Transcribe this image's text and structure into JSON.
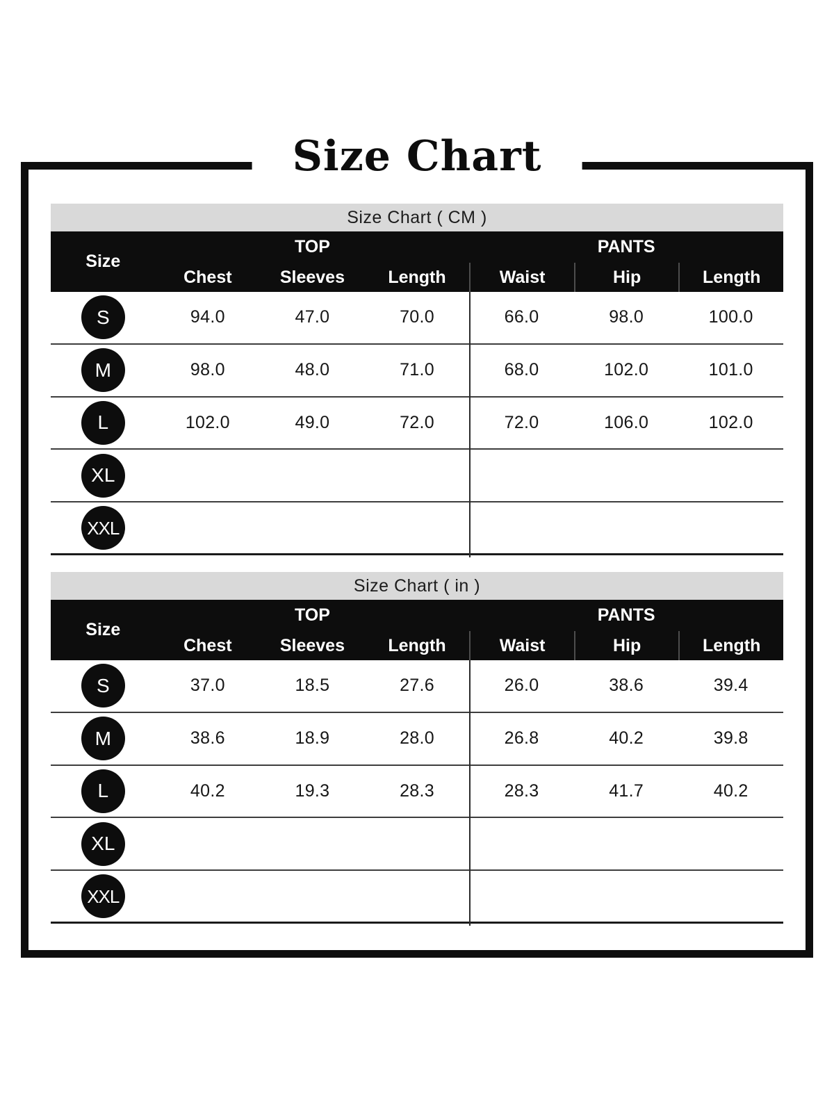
{
  "page": {
    "title": "Size Chart"
  },
  "colors": {
    "frame_border": "#0e0e0e",
    "caption_bar_bg": "#d9d9d9",
    "header_bg": "#0d0d0d",
    "header_text": "#ffffff",
    "body_text": "#161616"
  },
  "tables": [
    {
      "caption": "Size Chart ( CM )",
      "header": {
        "size": "Size",
        "top": "TOP",
        "pants": "PANTS"
      },
      "columns": [
        "Chest",
        "Sleeves",
        "Length",
        "Waist",
        "Hip",
        "Length"
      ],
      "rows": [
        {
          "size": "S",
          "values": [
            "94.0",
            "47.0",
            "70.0",
            "66.0",
            "98.0",
            "100.0"
          ]
        },
        {
          "size": "M",
          "values": [
            "98.0",
            "48.0",
            "71.0",
            "68.0",
            "102.0",
            "101.0"
          ]
        },
        {
          "size": "L",
          "values": [
            "102.0",
            "49.0",
            "72.0",
            "72.0",
            "106.0",
            "102.0"
          ]
        },
        {
          "size": "XL",
          "values": [
            "",
            "",
            "",
            "",
            "",
            ""
          ]
        },
        {
          "size": "XXL",
          "values": [
            "",
            "",
            "",
            "",
            "",
            ""
          ]
        }
      ]
    },
    {
      "caption": "Size Chart ( in )",
      "header": {
        "size": "Size",
        "top": "TOP",
        "pants": "PANTS"
      },
      "columns": [
        "Chest",
        "Sleeves",
        "Length",
        "Waist",
        "Hip",
        "Length"
      ],
      "rows": [
        {
          "size": "S",
          "values": [
            "37.0",
            "18.5",
            "27.6",
            "26.0",
            "38.6",
            "39.4"
          ]
        },
        {
          "size": "M",
          "values": [
            "38.6",
            "18.9",
            "28.0",
            "26.8",
            "40.2",
            "39.8"
          ]
        },
        {
          "size": "L",
          "values": [
            "40.2",
            "19.3",
            "28.3",
            "28.3",
            "41.7",
            "40.2"
          ]
        },
        {
          "size": "XL",
          "values": [
            "",
            "",
            "",
            "",
            "",
            ""
          ]
        },
        {
          "size": "XXL",
          "values": [
            "",
            "",
            "",
            "",
            "",
            ""
          ]
        }
      ]
    }
  ]
}
